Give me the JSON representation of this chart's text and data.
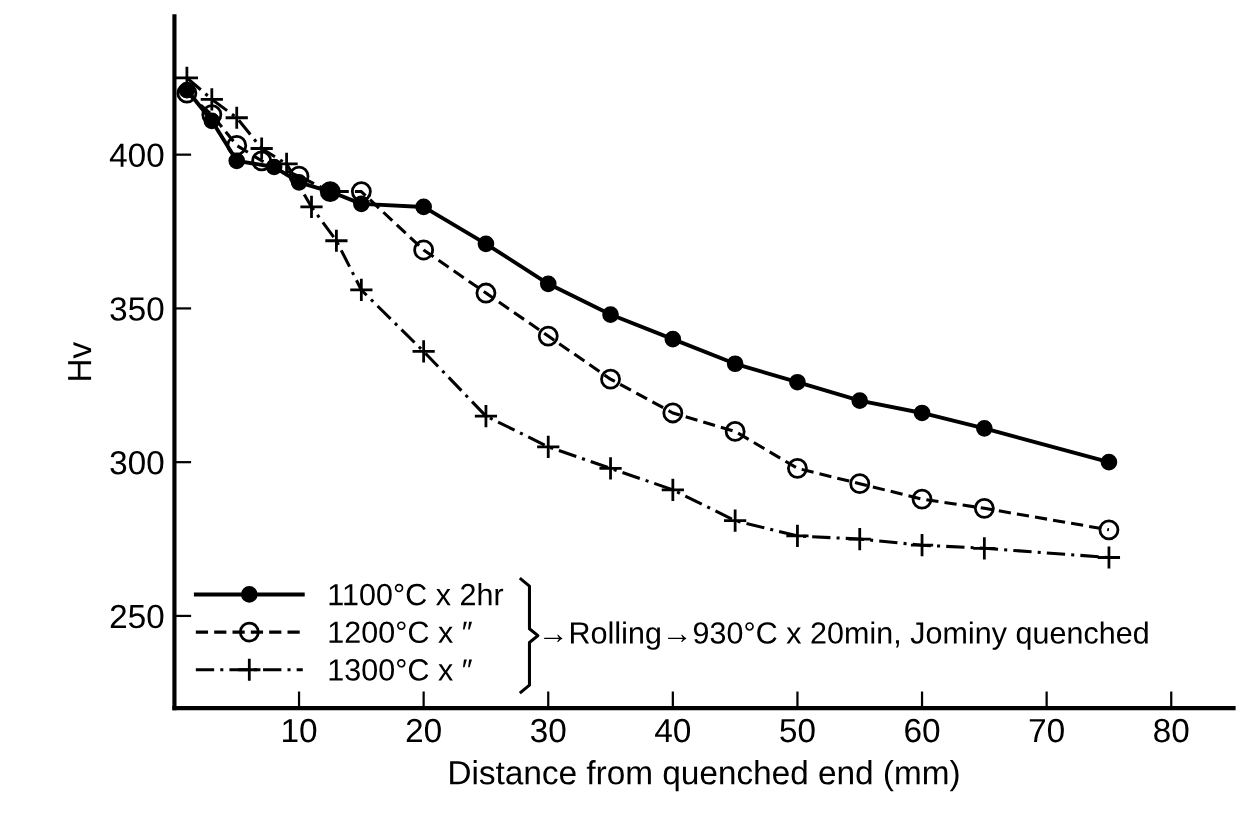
{
  "chart_data": {
    "type": "line",
    "xlabel": "Distance from quenched end (mm)",
    "ylabel": "Hv",
    "xlim": [
      0,
      85
    ],
    "xticks": [
      10,
      20,
      30,
      40,
      50,
      60,
      70,
      80
    ],
    "ylim": [
      220,
      445
    ],
    "yticks": [
      250,
      300,
      350,
      400
    ],
    "grid": false,
    "legend": "bottom left",
    "annotations": [
      "→Rolling→930°C x 20min, Jominy quenched"
    ],
    "series": [
      {
        "name": "1100°C x 2hr",
        "color": "#000000",
        "marker": "circle",
        "line_style": "solid",
        "x": [
          1,
          3,
          5,
          8,
          10,
          12.5,
          15,
          20,
          25,
          30,
          35,
          40,
          45,
          50,
          55,
          60,
          65,
          75
        ],
        "values": [
          421,
          411,
          398,
          396,
          391,
          388,
          384,
          383,
          371,
          358,
          348,
          340,
          332,
          326,
          320,
          316,
          311,
          300
        ]
      },
      {
        "name": "1200°C x ″",
        "color": "#000000",
        "marker": "open_circle",
        "line_style": "dashed",
        "x": [
          1,
          3,
          5,
          7,
          10,
          12.5,
          15,
          20,
          25,
          30,
          35,
          40,
          45,
          50,
          55,
          60,
          65,
          75
        ],
        "values": [
          420,
          413,
          403,
          398,
          393,
          388,
          388,
          369,
          355,
          341,
          327,
          316,
          310,
          298,
          293,
          288,
          285,
          278
        ]
      },
      {
        "name": "1300°C x ″",
        "color": "#000000",
        "marker": "cross",
        "line_style": "dashdot",
        "x": [
          1,
          3,
          5,
          7,
          9,
          11,
          13,
          15,
          20,
          25,
          30,
          35,
          40,
          45,
          50,
          55,
          60,
          65,
          75
        ],
        "values": [
          425,
          418,
          412,
          402,
          397,
          383,
          372,
          356,
          336,
          315,
          305,
          298,
          291,
          281,
          276,
          275,
          273,
          272,
          269
        ]
      }
    ]
  }
}
